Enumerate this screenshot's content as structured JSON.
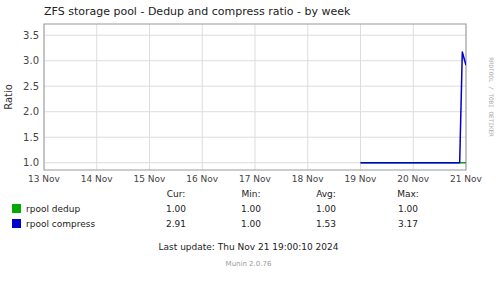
{
  "chart_data": {
    "type": "line",
    "title": "ZFS storage pool - Dedup and compress ratio - by week",
    "y_label": "Ratio",
    "xlim": [
      0,
      8
    ],
    "xticks": [
      {
        "value": 0,
        "label": "13 Nov"
      },
      {
        "value": 1,
        "label": "14 Nov"
      },
      {
        "value": 2,
        "label": "15 Nov"
      },
      {
        "value": 3,
        "label": "16 Nov"
      },
      {
        "value": 4,
        "label": "17 Nov"
      },
      {
        "value": 5,
        "label": "18 Nov"
      },
      {
        "value": 6,
        "label": "19 Nov"
      },
      {
        "value": 7,
        "label": "20 Nov"
      },
      {
        "value": 8,
        "label": "21 Nov"
      }
    ],
    "ylim": [
      0.857,
      3.72
    ],
    "yticks": [
      {
        "value": 1.0,
        "label": "1.0"
      },
      1.5,
      {
        "value": 2.0,
        "label": "2.0"
      },
      2.5,
      {
        "value": 3.0,
        "label": "3.0"
      },
      3.5
    ],
    "grid": true,
    "legend": "bottom",
    "stats_header": [
      "Cur:",
      "Min:",
      "Avg:",
      "Max:"
    ],
    "series": [
      {
        "name": "rpool dedup",
        "color": "#00aa00",
        "x": [
          6.0,
          6.8,
          7.5,
          8.0
        ],
        "values": [
          1.0,
          1.0,
          1.0,
          1.0
        ],
        "stats": [
          {
            "value": 1.0,
            "label": "1.00"
          },
          {
            "value": 1.0,
            "label": "1.00"
          },
          {
            "value": 1.0,
            "label": "1.00"
          },
          {
            "value": 1.0,
            "label": "1.00"
          }
        ]
      },
      {
        "name": "rpool compress",
        "color": "#0000cc",
        "x": [
          6.0,
          6.8,
          7.5,
          7.88,
          7.93,
          8.0
        ],
        "values": [
          1.0,
          1.0,
          1.0,
          1.0,
          3.17,
          2.91
        ],
        "stats": [
          {
            "value": 2.91,
            "label": "2.91"
          },
          {
            "value": 1.0,
            "label": "1.00"
          },
          {
            "value": 1.53,
            "label": "1.53"
          },
          {
            "value": 3.17,
            "label": "3.17"
          }
        ]
      }
    ],
    "annotations": [
      "Last update: Thu Nov 21 19:00:10 2024",
      "Munin 2.0.76",
      "RRDTOOL / TOBI OETIKER"
    ]
  }
}
